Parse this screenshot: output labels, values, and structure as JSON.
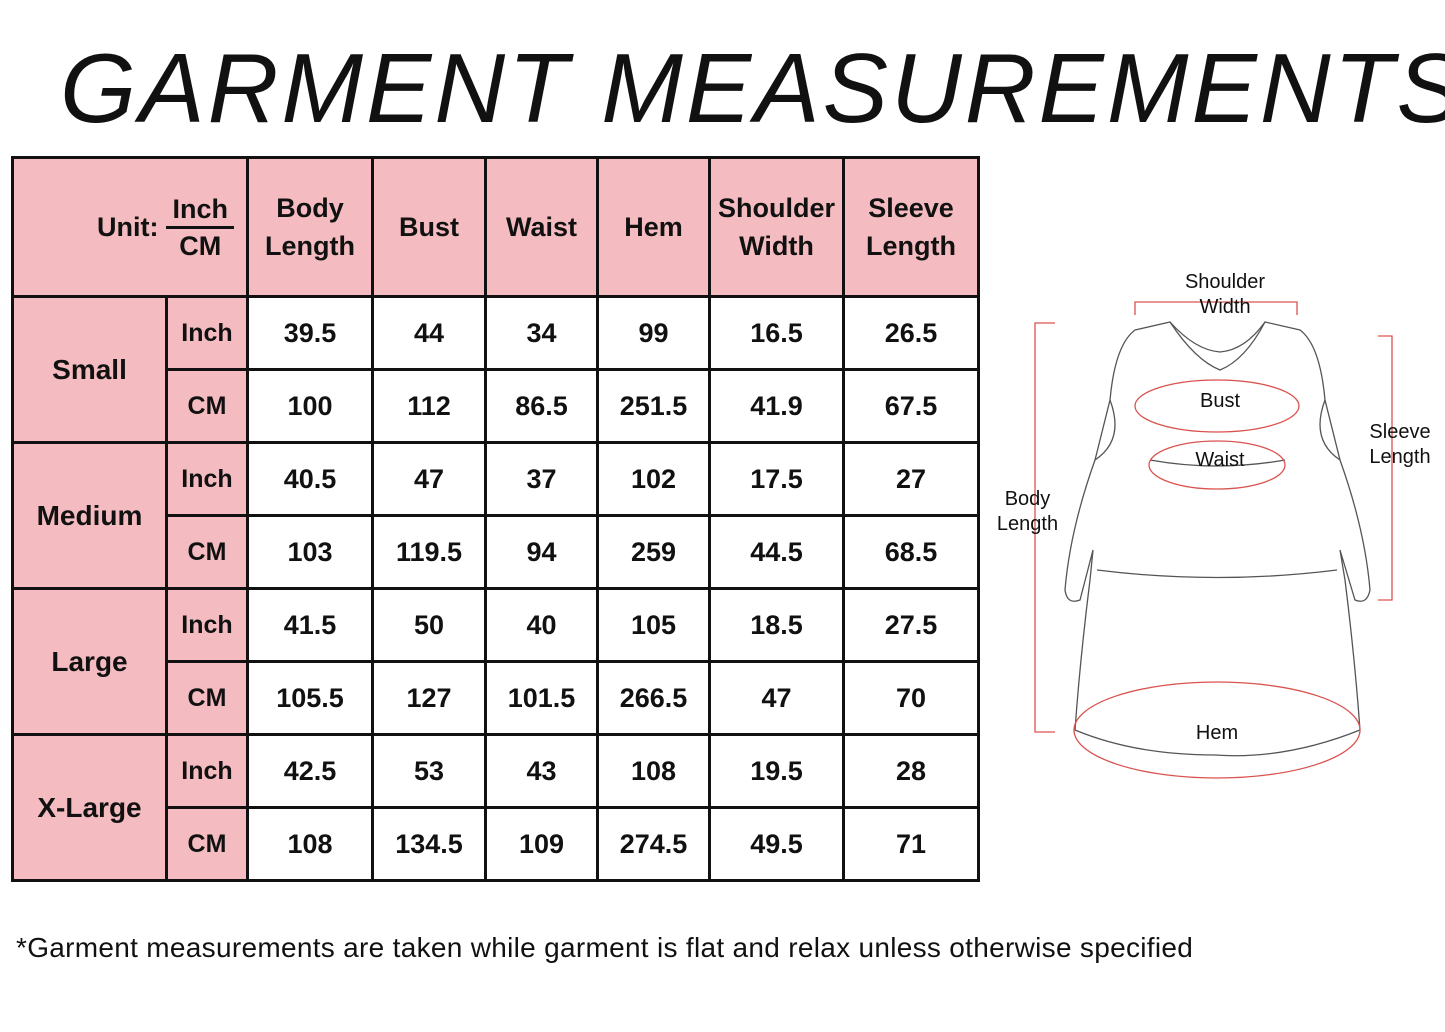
{
  "title": "GARMENT MEASUREMENTS",
  "table": {
    "unit_label": "Unit:",
    "unit_inch": "Inch",
    "unit_cm": "CM",
    "columns": [
      {
        "line1": "Body",
        "line2": "Length"
      },
      {
        "line1": "Bust",
        "line2": ""
      },
      {
        "line1": "Waist",
        "line2": ""
      },
      {
        "line1": "Hem",
        "line2": ""
      },
      {
        "line1": "Shoulder",
        "line2": "Width"
      },
      {
        "line1": "Sleeve",
        "line2": "Length"
      }
    ],
    "sizes": [
      {
        "name": "Small",
        "inch": [
          "39.5",
          "44",
          "34",
          "99",
          "16.5",
          "26.5"
        ],
        "cm": [
          "100",
          "112",
          "86.5",
          "251.5",
          "41.9",
          "67.5"
        ]
      },
      {
        "name": "Medium",
        "inch": [
          "40.5",
          "47",
          "37",
          "102",
          "17.5",
          "27"
        ],
        "cm": [
          "103",
          "119.5",
          "94",
          "259",
          "44.5",
          "68.5"
        ]
      },
      {
        "name": "Large",
        "inch": [
          "41.5",
          "50",
          "40",
          "105",
          "18.5",
          "27.5"
        ],
        "cm": [
          "105.5",
          "127",
          "101.5",
          "266.5",
          "47",
          "70"
        ]
      },
      {
        "name": "X-Large",
        "inch": [
          "42.5",
          "53",
          "43",
          "108",
          "19.5",
          "28"
        ],
        "cm": [
          "108",
          "134.5",
          "109",
          "274.5",
          "49.5",
          "71"
        ]
      }
    ]
  },
  "diagram": {
    "shoulder_width": [
      "Shoulder",
      "Width"
    ],
    "bust": "Bust",
    "waist": "Waist",
    "hem": "Hem",
    "body_length": [
      "Body",
      "Length"
    ],
    "sleeve_length": [
      "Sleeve",
      "Length"
    ]
  },
  "footnote": "*Garment measurements are taken while garment is flat and relax unless otherwise specified",
  "colors": {
    "header_pink": "#f4bcc0",
    "measure_line": "#d9534f"
  }
}
